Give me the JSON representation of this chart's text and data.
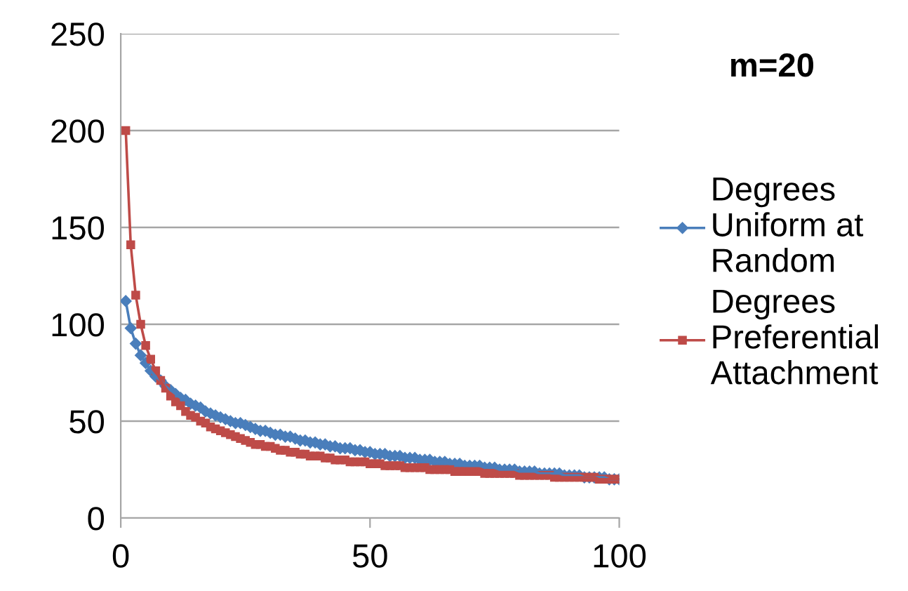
{
  "chart_data": {
    "type": "line",
    "title": "m=20",
    "x": [
      1,
      2,
      3,
      4,
      5,
      6,
      7,
      8,
      9,
      10,
      11,
      12,
      13,
      14,
      15,
      16,
      17,
      18,
      19,
      20,
      21,
      22,
      23,
      24,
      25,
      26,
      27,
      28,
      29,
      30,
      31,
      32,
      33,
      34,
      35,
      36,
      37,
      38,
      39,
      40,
      41,
      42,
      43,
      44,
      45,
      46,
      47,
      48,
      49,
      50,
      51,
      52,
      53,
      54,
      55,
      56,
      57,
      58,
      59,
      60,
      61,
      62,
      63,
      64,
      65,
      66,
      67,
      68,
      69,
      70,
      71,
      72,
      73,
      74,
      75,
      76,
      77,
      78,
      79,
      80,
      81,
      82,
      83,
      84,
      85,
      86,
      87,
      88,
      89,
      90,
      91,
      92,
      93,
      94,
      95,
      96,
      97,
      98,
      99,
      100
    ],
    "series": [
      {
        "name": "Degrees\nUniform at\nRandom",
        "color": "#4a7ebb",
        "marker": "diamond",
        "values": [
          112,
          98,
          90,
          84,
          80,
          76,
          73,
          71,
          68,
          66,
          64,
          62,
          61,
          59,
          58,
          57,
          55,
          54,
          53,
          52,
          51,
          50,
          49,
          49,
          48,
          47,
          46,
          45,
          45,
          44,
          43,
          43,
          42,
          42,
          41,
          40,
          40,
          39,
          39,
          38,
          38,
          37,
          37,
          36,
          36,
          36,
          35,
          35,
          34,
          34,
          33,
          33,
          33,
          32,
          32,
          32,
          31,
          31,
          31,
          30,
          30,
          30,
          29,
          29,
          29,
          28,
          28,
          28,
          27,
          27,
          27,
          27,
          26,
          26,
          26,
          25,
          25,
          25,
          25,
          24,
          24,
          24,
          24,
          23,
          23,
          23,
          23,
          23,
          22,
          22,
          22,
          22,
          21,
          21,
          21,
          21,
          21,
          20,
          20,
          20
        ]
      },
      {
        "name": "Degrees\nPreferential\nAttachment",
        "color": "#be4b48",
        "marker": "square",
        "values": [
          200,
          141,
          115,
          100,
          89,
          82,
          76,
          71,
          67,
          63,
          60,
          58,
          55,
          53,
          52,
          50,
          49,
          47,
          46,
          45,
          44,
          43,
          42,
          41,
          40,
          39,
          38,
          38,
          37,
          37,
          36,
          35,
          35,
          34,
          34,
          33,
          33,
          32,
          32,
          32,
          31,
          31,
          30,
          30,
          30,
          29,
          29,
          29,
          29,
          28,
          28,
          28,
          27,
          27,
          27,
          27,
          26,
          26,
          26,
          26,
          26,
          25,
          25,
          25,
          25,
          25,
          24,
          24,
          24,
          24,
          24,
          24,
          23,
          23,
          23,
          23,
          23,
          23,
          23,
          22,
          22,
          22,
          22,
          22,
          22,
          22,
          21,
          21,
          21,
          21,
          21,
          21,
          21,
          21,
          21,
          20,
          20,
          20,
          20,
          20
        ]
      }
    ],
    "xlim": [
      0,
      100
    ],
    "xticks": [
      0,
      50,
      100
    ],
    "ylim": [
      0,
      250
    ],
    "yticks": [
      0,
      50,
      100,
      150,
      200,
      250
    ],
    "grid": "y",
    "legend": "right",
    "line_style": "solid"
  }
}
